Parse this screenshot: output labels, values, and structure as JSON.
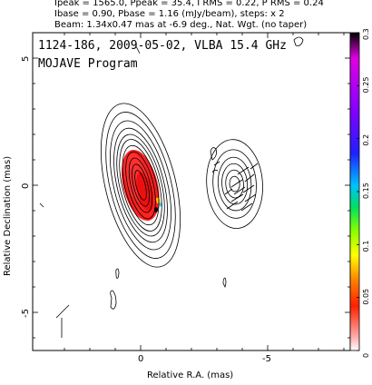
{
  "header": {
    "line1": "Ipeak = 1565.0, Ppeak = 35.4, I RMS = 0.22, P RMS = 0.24",
    "line2": "Ibase = 0.90, Pbase = 1.16 (mJy/beam), steps: x 2",
    "line3": "Beam: 1.34x0.47 mas at -6.9 deg., Nat. Wgt. (no taper)"
  },
  "plot": {
    "title_line1": "1124-186, 2009-05-02, VLBA 15.4 GHz",
    "title_line2": "MOJAVE Program",
    "xlabel": "Relative R.A. (mas)",
    "ylabel": "Relative Declination (mas)",
    "x_ticks": [
      "0",
      "-5"
    ],
    "y_ticks": [
      "5",
      "0",
      "-5"
    ]
  },
  "colorbar": {
    "ticks": [
      "0.3",
      "0.25",
      "0.2",
      "0.15",
      "0.1",
      "0.05",
      "0"
    ],
    "colors": [
      "#000000",
      "#e000e0",
      "#8000ff",
      "#2020ff",
      "#00c0ff",
      "#00e060",
      "#80ff00",
      "#ffff00",
      "#ff8000",
      "#ff2000",
      "#ffffff"
    ]
  },
  "chart_data": {
    "type": "heatmap",
    "xlabel": "Relative R.A. (mas)",
    "ylabel": "Relative Declination (mas)",
    "xlim": [
      4.2,
      -8.3
    ],
    "ylim": [
      -6.3,
      6.3
    ],
    "colorbar_range": [
      0,
      0.3
    ],
    "contours": [
      {
        "cx": 0.0,
        "cy": 0.0,
        "rx": [
          0.18,
          0.28,
          0.38,
          0.5,
          0.62,
          0.72,
          0.82,
          0.92,
          1.05,
          1.2,
          1.38
        ],
        "ry": [
          0.6,
          0.85,
          1.1,
          1.35,
          1.6,
          1.85,
          2.05,
          2.3,
          2.6,
          2.95,
          3.3
        ]
      },
      {
        "cx": -3.7,
        "cy": 0.05,
        "rx": [
          0.2,
          0.35,
          0.5,
          0.65,
          0.85,
          1.1
        ],
        "ry": [
          0.3,
          0.55,
          0.8,
          1.05,
          1.35,
          1.75
        ]
      }
    ]
  }
}
